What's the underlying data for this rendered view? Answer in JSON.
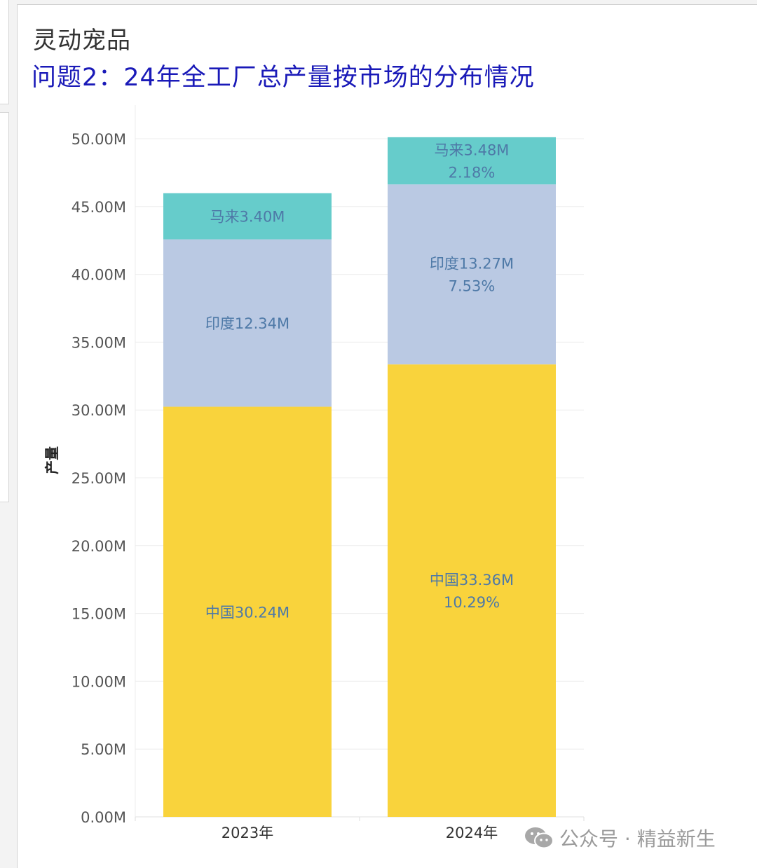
{
  "header": {
    "app_title": "灵动宠品",
    "chart_title": "问题2：24年全工厂总产量按市场的分布情况"
  },
  "chart_data": {
    "type": "bar",
    "stacked": true,
    "categories": [
      "2023年",
      "2024年"
    ],
    "ylabel": "产量",
    "ylim": [
      0,
      50
    ],
    "y_ticks": [
      "0.00M",
      "5.00M",
      "10.00M",
      "15.00M",
      "20.00M",
      "25.00M",
      "30.00M",
      "35.00M",
      "40.00M",
      "45.00M",
      "50.00M"
    ],
    "grid": true,
    "series": [
      {
        "key": "china",
        "color": "#f9d33c",
        "values": [
          30.24,
          33.36
        ],
        "labels": [
          [
            "中国30.24M"
          ],
          [
            "中国33.36M",
            "10.29%"
          ]
        ]
      },
      {
        "key": "india",
        "color": "#bac9e3",
        "values": [
          12.34,
          13.27
        ],
        "labels": [
          [
            "印度12.34M"
          ],
          [
            "印度13.27M",
            "7.53%"
          ]
        ]
      },
      {
        "key": "malaysia",
        "color": "#66cccb",
        "values": [
          3.4,
          3.48
        ],
        "labels": [
          [
            "马来3.40M"
          ],
          [
            "马来3.48M",
            "2.18%"
          ]
        ]
      }
    ],
    "label_color": "#4e79a7"
  },
  "watermark": {
    "text": "公众号 · 精益新生",
    "icon": "wechat-icon"
  }
}
